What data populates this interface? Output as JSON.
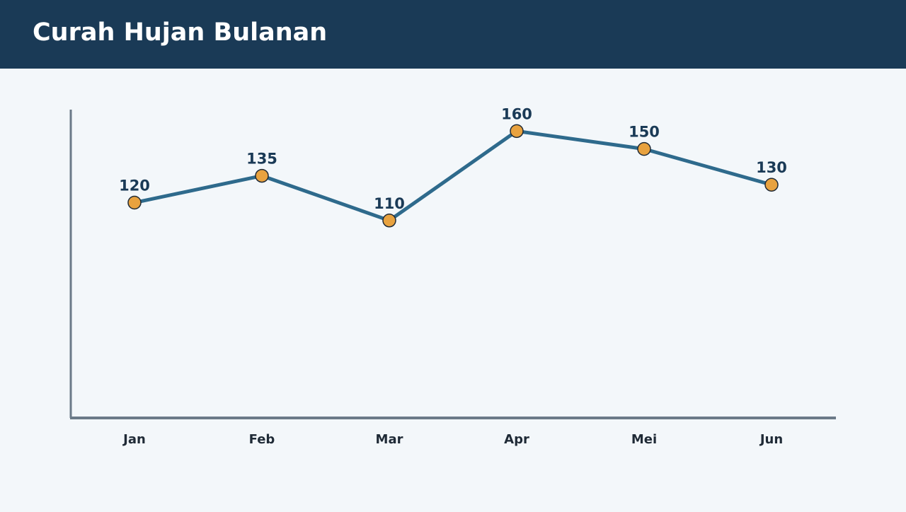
{
  "chart_data": {
    "type": "line",
    "title": "Curah Hujan Bulanan",
    "categories": [
      "Jan",
      "Feb",
      "Mar",
      "Apr",
      "Mei",
      "Jun"
    ],
    "values": [
      120,
      135,
      110,
      160,
      150,
      130
    ],
    "color": "#2e6a8c",
    "marker_color": "#e8a23f",
    "ylim": [
      0,
      172
    ]
  }
}
